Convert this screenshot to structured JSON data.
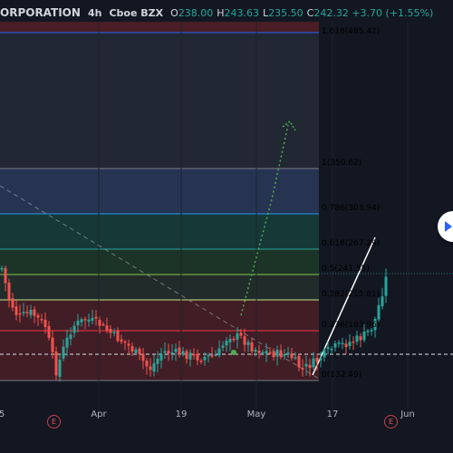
{
  "header": {
    "symbol": "ORPORATION",
    "interval": "4h",
    "exchange": "Cboe BZX",
    "ohlc": [
      {
        "k": "O",
        "v": "238.00"
      },
      {
        "k": "H",
        "v": "243.63"
      },
      {
        "k": "L",
        "v": "235.50"
      },
      {
        "k": "C",
        "v": "242.32 +3.70 (+1.55%)"
      }
    ]
  },
  "fib_levels": [
    {
      "ratio": "1.618",
      "price": 485.42,
      "text": "1.618(485.42)",
      "color": "#2962ff",
      "fill": "#1c3f6e"
    },
    {
      "ratio": "1",
      "price": 350.62,
      "text": "1(350.62)",
      "color": "#787b86",
      "fill": "#252a36"
    },
    {
      "ratio": "0.786",
      "price": 303.94,
      "text": "0.786(303.94)",
      "color": "#2196f3",
      "fill": "#2a3a5a"
    },
    {
      "ratio": "0.618",
      "price": 267.29,
      "text": "0.618(267.29)",
      "color": "#26a69a",
      "fill": "#173f3c"
    },
    {
      "ratio": "0.5",
      "price": 241.55,
      "text": "0.5(241.55)",
      "color": "#8bc34a",
      "fill": "#1f3a28"
    },
    {
      "ratio": "0.382",
      "price": 215.81,
      "text": "0.382(215.81)",
      "color": "#c6e48b",
      "fill": "#24302b"
    },
    {
      "ratio": "0.236",
      "price": 183.96,
      "text": "0.236(183.96)",
      "color": "#f23645",
      "fill": "#4a1e26"
    },
    {
      "ratio": "0",
      "price": 132.49,
      "text": "0(132.49)",
      "color": "#787b86",
      "fill": "#4a1e26"
    }
  ],
  "x_axis": [
    "5",
    "Apr",
    "19",
    "May",
    "17",
    "Jun"
  ],
  "earnings_badges": [
    "E",
    "E"
  ],
  "colors": {
    "up": "#26a69a",
    "down": "#ef5350",
    "background": "#131722",
    "text": "#d1d4dc"
  }
}
